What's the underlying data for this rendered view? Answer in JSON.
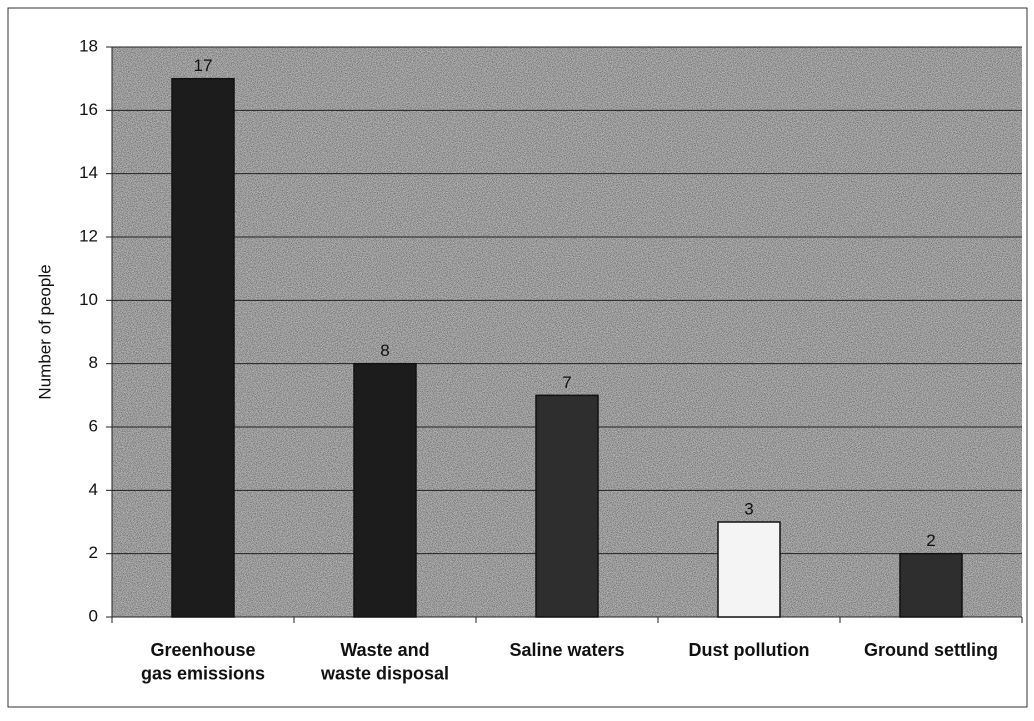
{
  "chart_data": {
    "type": "bar",
    "y_label": "Number of people",
    "categories": [
      "Greenhouse\ngas emissions",
      "Waste and\nwaste disposal",
      "Saline waters",
      "Dust pollution",
      "Ground settling"
    ],
    "values": [
      17,
      8,
      7,
      3,
      2
    ],
    "colors": [
      "#1c1c1c",
      "#1c1c1c",
      "#2e2e2e",
      "#f4f4f4",
      "#2e2e2e"
    ],
    "ylim": [
      0,
      18
    ],
    "yticks": [
      0,
      2,
      4,
      6,
      8,
      10,
      12,
      14,
      16,
      18
    ],
    "grid": true
  }
}
